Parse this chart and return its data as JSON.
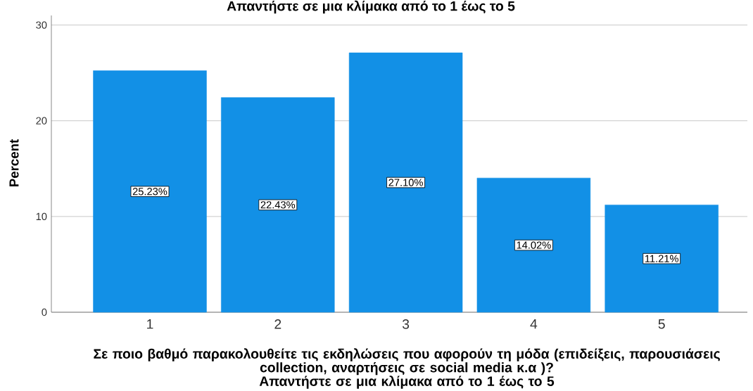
{
  "chart_data": {
    "type": "bar",
    "title": "Απαντήστε σε μια κλίμακα από το 1 έως το 5",
    "xlabel": "Σε ποιο βαθμό παρακολουθείτε τις εκδηλώσεις που αφορούν τη μόδα (επιδείξεις, παρουσιάσεις\ncollection, αναρτήσεις σε social media κ.α )?\nΑπαντήστε σε μια κλίμακα από το 1 έως το 5",
    "ylabel": "Percent",
    "categories": [
      "1",
      "2",
      "3",
      "4",
      "5"
    ],
    "values": [
      25.23,
      22.43,
      27.1,
      14.02,
      11.21
    ],
    "value_labels": [
      "25.23%",
      "22.43%",
      "27.10%",
      "14.02%",
      "11.21%"
    ],
    "color": "#1290e6",
    "ylim": [
      0,
      31
    ],
    "yticks": [
      0,
      10,
      20,
      30
    ],
    "grid": "y"
  }
}
